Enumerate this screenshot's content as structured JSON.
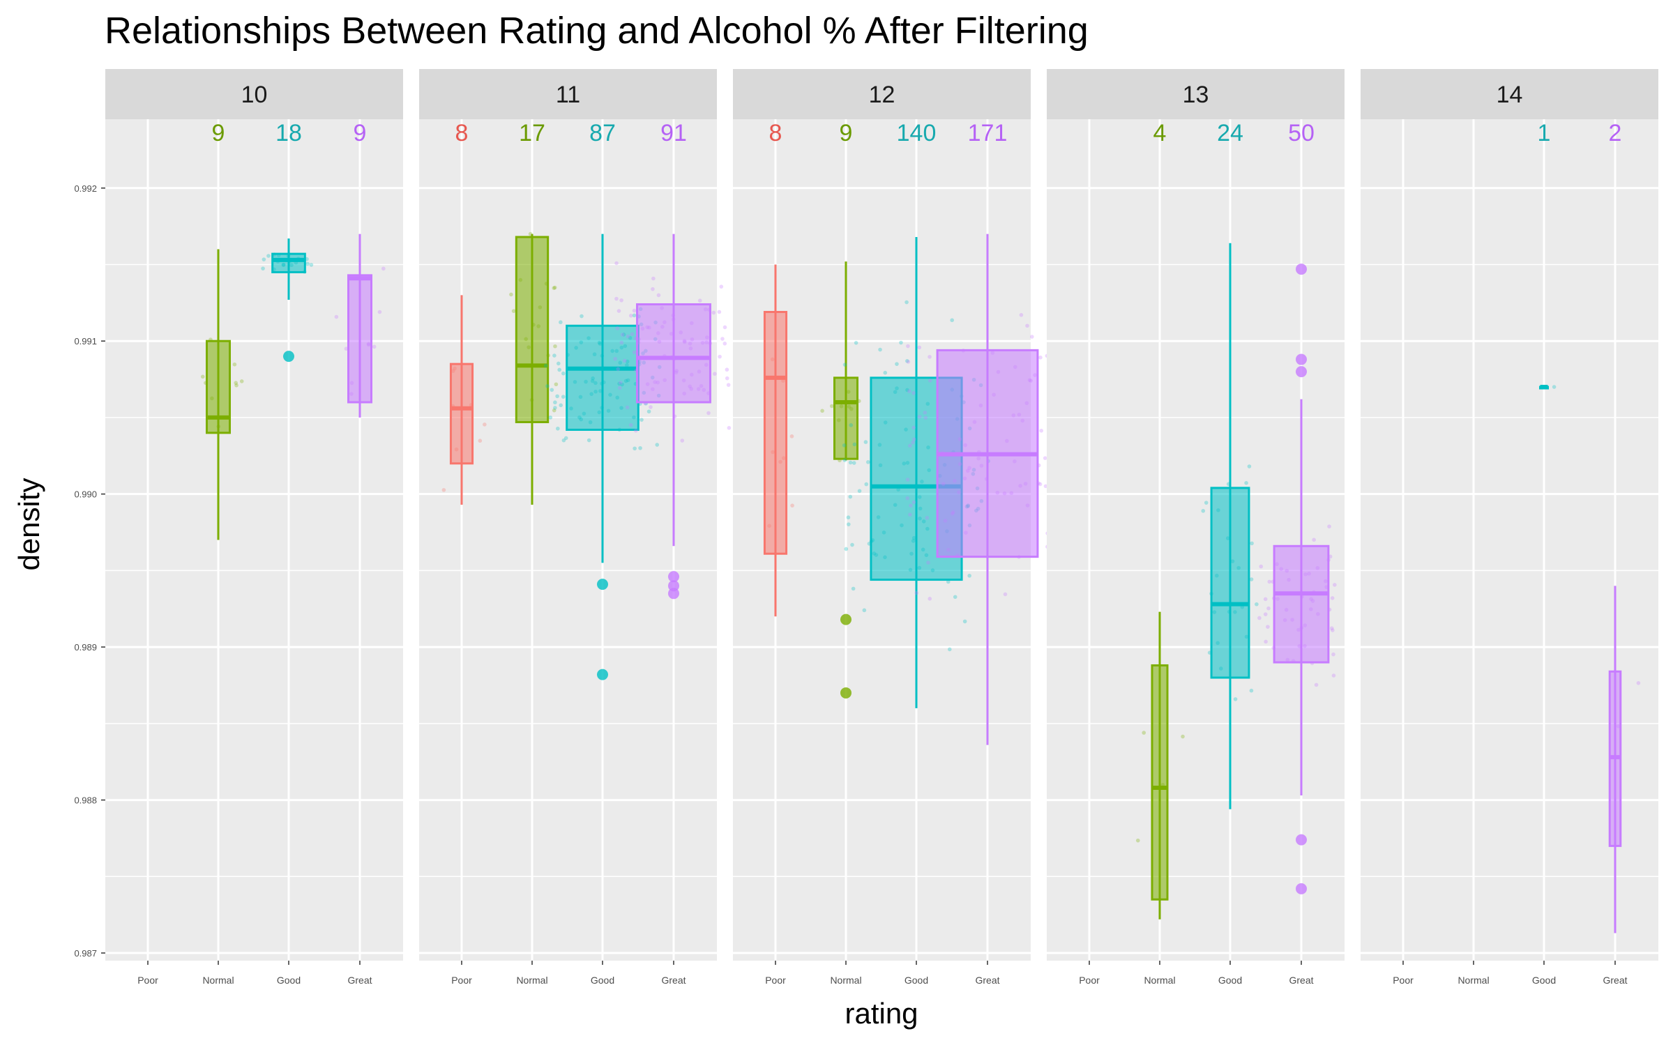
{
  "chart_data": {
    "type": "boxplot",
    "title": "Relationships Between Rating and Alcohol % After Filtering",
    "xlabel": "rating",
    "ylabel": "density",
    "ylim": [
      0.98695,
      0.99245
    ],
    "yticks": [
      "0.987",
      "0.988",
      "0.989",
      "0.990",
      "0.991",
      "0.992"
    ],
    "categories": [
      "Poor",
      "Normal",
      "Good",
      "Great"
    ],
    "colors": {
      "Poor": "#F8766D",
      "Normal": "#7CAE00",
      "Good": "#00BFC4",
      "Great": "#C77CFF"
    },
    "count_colors": {
      "Poor": "#E7574F",
      "Normal": "#6A9A00",
      "Good": "#17A9AE",
      "Great": "#B561F5"
    },
    "panels": [
      {
        "facet": "10",
        "boxes": [
          {
            "rating": "Normal",
            "n": "9",
            "min": 0.9897,
            "q1": 0.9904,
            "median": 0.9905,
            "q3": 0.991,
            "max": 0.9916,
            "outliers": []
          },
          {
            "rating": "Good",
            "n": "18",
            "min": 0.99127,
            "q1": 0.99145,
            "median": 0.99153,
            "q3": 0.99157,
            "max": 0.99167,
            "outliers": [
              0.9909
            ]
          },
          {
            "rating": "Great",
            "n": "9",
            "min": 0.9905,
            "q1": 0.9906,
            "median": 0.99141,
            "q3": 0.99143,
            "max": 0.9917,
            "outliers": []
          }
        ]
      },
      {
        "facet": "11",
        "boxes": [
          {
            "rating": "Poor",
            "n": "8",
            "min": 0.98993,
            "q1": 0.9902,
            "median": 0.99056,
            "q3": 0.99085,
            "max": 0.9913,
            "outliers": []
          },
          {
            "rating": "Normal",
            "n": "17",
            "min": 0.98993,
            "q1": 0.99047,
            "median": 0.99084,
            "q3": 0.99168,
            "max": 0.9917,
            "outliers": []
          },
          {
            "rating": "Good",
            "n": "87",
            "min": 0.98955,
            "q1": 0.99042,
            "median": 0.99082,
            "q3": 0.9911,
            "max": 0.9917,
            "outliers": [
              0.98941,
              0.98882
            ]
          },
          {
            "rating": "Great",
            "n": "91",
            "min": 0.98966,
            "q1": 0.9906,
            "median": 0.99089,
            "q3": 0.99124,
            "max": 0.9917,
            "outliers": [
              0.98946,
              0.9894,
              0.98935
            ]
          }
        ]
      },
      {
        "facet": "12",
        "boxes": [
          {
            "rating": "Poor",
            "n": "8",
            "min": 0.9892,
            "q1": 0.98961,
            "median": 0.99076,
            "q3": 0.99119,
            "max": 0.9915,
            "outliers": []
          },
          {
            "rating": "Normal",
            "n": "9",
            "min": 0.99022,
            "q1": 0.99023,
            "median": 0.9906,
            "q3": 0.99076,
            "max": 0.99152,
            "outliers": [
              0.98918,
              0.9887
            ]
          },
          {
            "rating": "Good",
            "n": "140",
            "min": 0.9886,
            "q1": 0.98944,
            "median": 0.99005,
            "q3": 0.99076,
            "max": 0.99168,
            "outliers": []
          },
          {
            "rating": "Great",
            "n": "171",
            "min": 0.98836,
            "q1": 0.98959,
            "median": 0.99026,
            "q3": 0.99094,
            "max": 0.9917,
            "outliers": []
          }
        ]
      },
      {
        "facet": "13",
        "boxes": [
          {
            "rating": "Normal",
            "n": "4",
            "min": 0.98722,
            "q1": 0.98735,
            "median": 0.98808,
            "q3": 0.98888,
            "max": 0.98923,
            "outliers": []
          },
          {
            "rating": "Good",
            "n": "24",
            "min": 0.98794,
            "q1": 0.9888,
            "median": 0.98928,
            "q3": 0.99004,
            "max": 0.99164,
            "outliers": []
          },
          {
            "rating": "Great",
            "n": "50",
            "min": 0.98803,
            "q1": 0.9889,
            "median": 0.98935,
            "q3": 0.98966,
            "max": 0.99062,
            "outliers": [
              0.99147,
              0.99088,
              0.9908,
              0.98774,
              0.98742
            ]
          }
        ]
      },
      {
        "facet": "14",
        "boxes": [
          {
            "rating": "Good",
            "n": "1",
            "min": 0.9907,
            "q1": 0.9907,
            "median": 0.9907,
            "q3": 0.9907,
            "max": 0.9907,
            "outliers": []
          },
          {
            "rating": "Great",
            "n": "2",
            "min": 0.98713,
            "q1": 0.9877,
            "median": 0.98828,
            "q3": 0.98884,
            "max": 0.9894,
            "outliers": []
          }
        ]
      }
    ],
    "grid": true,
    "legend": "none"
  }
}
